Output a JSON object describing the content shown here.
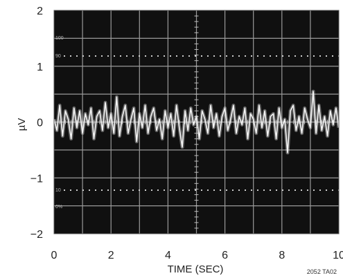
{
  "chart_data": {
    "type": "line",
    "title": "",
    "xlabel": "TIME (SEC)",
    "ylabel": "µV",
    "xlim": [
      0,
      10
    ],
    "ylim": [
      -2,
      2
    ],
    "xticks": [
      "0",
      "2",
      "4",
      "6",
      "8",
      "10"
    ],
    "yticks": [
      "2",
      "1",
      "0",
      "−1",
      "−2"
    ],
    "grid": true,
    "background": "oscilloscope screen (black)",
    "trace_color": "#f4f4f4",
    "grid_color": "#9a9a9a",
    "screen_color": "#101010",
    "series": [
      {
        "x": [
          0.0,
          0.1,
          0.2,
          0.3,
          0.4,
          0.5,
          0.6,
          0.7,
          0.8,
          0.9,
          1.0,
          1.1,
          1.2,
          1.3,
          1.4,
          1.5,
          1.6,
          1.7,
          1.8,
          1.9,
          2.0,
          2.1,
          2.2,
          2.3,
          2.4,
          2.5,
          2.6,
          2.7,
          2.8,
          2.9,
          3.0,
          3.1,
          3.2,
          3.3,
          3.4,
          3.5,
          3.6,
          3.7,
          3.8,
          3.9,
          4.0,
          4.1,
          4.2,
          4.3,
          4.4,
          4.5,
          4.6,
          4.7,
          4.8,
          4.9,
          5.0,
          5.1,
          5.2,
          5.3,
          5.4,
          5.5,
          5.6,
          5.7,
          5.8,
          5.9,
          6.0,
          6.1,
          6.2,
          6.3,
          6.4,
          6.5,
          6.6,
          6.7,
          6.8,
          6.9,
          7.0,
          7.1,
          7.2,
          7.3,
          7.4,
          7.5,
          7.6,
          7.7,
          7.8,
          7.9,
          8.0,
          8.1,
          8.2,
          8.3,
          8.4,
          8.5,
          8.6,
          8.7,
          8.8,
          8.9,
          9.0,
          9.1,
          9.2,
          9.3,
          9.4,
          9.5,
          9.6,
          9.7,
          9.8,
          9.9,
          10.0
        ],
        "y": [
          0.05,
          -0.15,
          0.3,
          -0.25,
          0.2,
          0.05,
          -0.3,
          0.25,
          -0.1,
          0.2,
          -0.2,
          0.15,
          -0.05,
          0.25,
          -0.3,
          0.1,
          0.2,
          -0.15,
          0.35,
          -0.1,
          0.15,
          -0.2,
          0.45,
          -0.25,
          0.1,
          0.3,
          -0.2,
          0.05,
          0.25,
          -0.35,
          0.15,
          -0.1,
          0.3,
          -0.2,
          0.1,
          0.25,
          -0.15,
          0.05,
          -0.3,
          0.2,
          -0.1,
          0.15,
          -0.25,
          0.3,
          -0.1,
          -0.45,
          0.2,
          -0.15,
          0.25,
          -0.05,
          0.1,
          -0.3,
          0.2,
          0.05,
          -0.2,
          0.3,
          -0.1,
          0.15,
          -0.25,
          0.1,
          0.25,
          -0.15,
          0.05,
          0.3,
          -0.2,
          0.1,
          -0.05,
          0.25,
          -0.3,
          0.15,
          0.05,
          -0.2,
          0.3,
          -0.1,
          0.2,
          -0.25,
          0.1,
          0.15,
          -0.3,
          0.25,
          -0.1,
          0.05,
          -0.55,
          0.2,
          0.3,
          -0.15,
          0.1,
          -0.2,
          0.25,
          0.05,
          -0.1,
          0.55,
          -0.2,
          0.3,
          -0.15,
          0.1,
          -0.25,
          0.2,
          -0.05,
          0.25,
          -0.1
        ]
      }
    ]
  },
  "figure_code": "2052 TA02",
  "scope_markings": [
    "100",
    "90",
    "10",
    "0%"
  ]
}
